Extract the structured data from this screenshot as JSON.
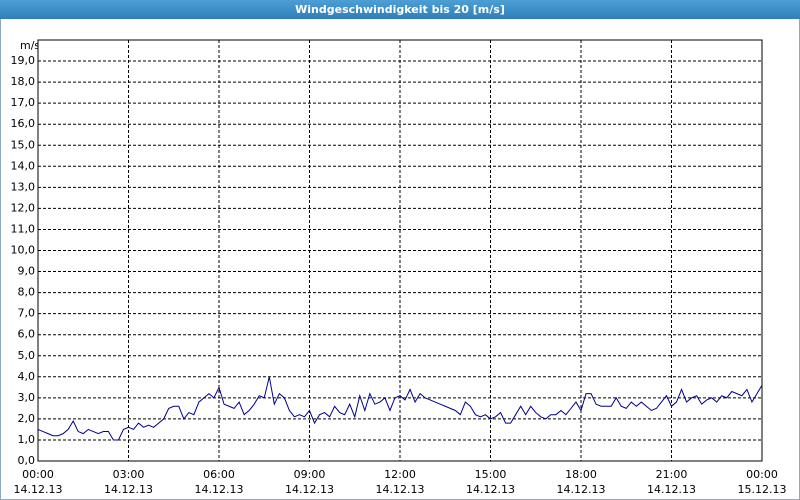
{
  "chart_data": {
    "type": "line",
    "title": "Windgeschwindigkeit bis 20 [m/s]",
    "y_label": "m/s",
    "color": "#00008b",
    "grid": true,
    "xlim": [
      0,
      1440
    ],
    "xticks": [
      {
        "value": 0,
        "label": "00:00\n14.12.13"
      },
      {
        "value": 180,
        "label": "03:00\n14.12.13"
      },
      {
        "value": 360,
        "label": "06:00\n14.12.13"
      },
      {
        "value": 540,
        "label": "09:00\n14.12.13"
      },
      {
        "value": 720,
        "label": "12:00\n14.12.13"
      },
      {
        "value": 900,
        "label": "15:00\n14.12.13"
      },
      {
        "value": 1080,
        "label": "18:00\n14.12.13"
      },
      {
        "value": 1260,
        "label": "21:00\n14.12.13"
      },
      {
        "value": 1440,
        "label": "00:00\n15.12.13"
      }
    ],
    "ylim": [
      0,
      20
    ],
    "yticks": [
      {
        "value": 0,
        "label": "0,0"
      },
      {
        "value": 1,
        "label": "1,0"
      },
      {
        "value": 2,
        "label": "2,0"
      },
      {
        "value": 3,
        "label": "3,0"
      },
      {
        "value": 4,
        "label": "4,0"
      },
      {
        "value": 5,
        "label": "5,0"
      },
      {
        "value": 6,
        "label": "6,0"
      },
      {
        "value": 7,
        "label": "7,0"
      },
      {
        "value": 8,
        "label": "8,0"
      },
      {
        "value": 9,
        "label": "9,0"
      },
      {
        "value": 10,
        "label": "10,0"
      },
      {
        "value": 11,
        "label": "11,0"
      },
      {
        "value": 12,
        "label": "12,0"
      },
      {
        "value": 13,
        "label": "13,0"
      },
      {
        "value": 14,
        "label": "14,0"
      },
      {
        "value": 15,
        "label": "15,0"
      },
      {
        "value": 16,
        "label": "16,0"
      },
      {
        "value": 17,
        "label": "17,0"
      },
      {
        "value": 18,
        "label": "18,0"
      },
      {
        "value": 19,
        "label": "19,0"
      }
    ],
    "x": [
      0,
      10,
      20,
      30,
      40,
      50,
      60,
      70,
      80,
      90,
      100,
      110,
      120,
      130,
      140,
      150,
      160,
      170,
      180,
      190,
      200,
      210,
      220,
      230,
      240,
      250,
      260,
      270,
      280,
      290,
      300,
      310,
      320,
      330,
      340,
      350,
      360,
      370,
      380,
      390,
      400,
      410,
      420,
      430,
      440,
      450,
      460,
      470,
      480,
      490,
      500,
      510,
      520,
      530,
      540,
      550,
      560,
      570,
      580,
      590,
      600,
      610,
      620,
      630,
      640,
      650,
      660,
      670,
      680,
      690,
      700,
      710,
      720,
      730,
      740,
      750,
      760,
      770,
      780,
      790,
      800,
      810,
      820,
      830,
      840,
      850,
      860,
      870,
      880,
      890,
      900,
      910,
      920,
      930,
      940,
      950,
      960,
      970,
      980,
      990,
      1000,
      1010,
      1020,
      1030,
      1040,
      1050,
      1060,
      1070,
      1080,
      1090,
      1100,
      1110,
      1120,
      1130,
      1140,
      1150,
      1160,
      1170,
      1180,
      1190,
      1200,
      1210,
      1220,
      1230,
      1240,
      1250,
      1260,
      1270,
      1280,
      1290,
      1300,
      1310,
      1320,
      1330,
      1340,
      1350,
      1360,
      1370,
      1380,
      1390,
      1400,
      1410,
      1420,
      1430,
      1440
    ],
    "values": [
      1.5,
      1.4,
      1.3,
      1.2,
      1.2,
      1.3,
      1.5,
      1.9,
      1.4,
      1.3,
      1.5,
      1.4,
      1.3,
      1.4,
      1.4,
      1.0,
      1.0,
      1.5,
      1.6,
      1.5,
      1.8,
      1.6,
      1.7,
      1.6,
      1.8,
      2.0,
      2.5,
      2.6,
      2.6,
      2.0,
      2.3,
      2.2,
      2.8,
      3.0,
      3.2,
      3.0,
      3.5,
      2.7,
      2.6,
      2.5,
      2.8,
      2.2,
      2.4,
      2.7,
      3.1,
      3.0,
      4.0,
      2.7,
      3.2,
      3.0,
      2.4,
      2.1,
      2.2,
      2.1,
      2.4,
      1.8,
      2.2,
      2.3,
      2.1,
      2.6,
      2.3,
      2.2,
      2.7,
      2.1,
      3.1,
      2.4,
      3.2,
      2.7,
      2.8,
      3.0,
      2.4,
      3.0,
      3.1,
      2.9,
      3.4,
      2.8,
      3.2,
      3.0,
      2.9,
      2.8,
      2.7,
      2.6,
      2.5,
      2.4,
      2.2,
      2.8,
      2.6,
      2.2,
      2.1,
      2.2,
      2.0,
      2.1,
      2.3,
      1.8,
      1.8,
      2.2,
      2.6,
      2.2,
      2.6,
      2.3,
      2.1,
      2.0,
      2.2,
      2.2,
      2.4,
      2.2,
      2.5,
      2.8,
      2.4,
      3.2,
      3.2,
      2.7,
      2.6,
      2.6,
      2.6,
      3.0,
      2.6,
      2.5,
      2.8,
      2.6,
      2.8,
      2.6,
      2.4,
      2.5,
      2.8,
      3.1,
      2.6,
      2.8,
      3.4,
      2.8,
      3.0,
      3.1,
      2.7,
      2.9,
      3.0,
      2.8,
      3.1,
      3.0,
      3.3,
      3.2,
      3.1,
      3.4,
      2.8,
      3.2,
      3.6
    ]
  }
}
